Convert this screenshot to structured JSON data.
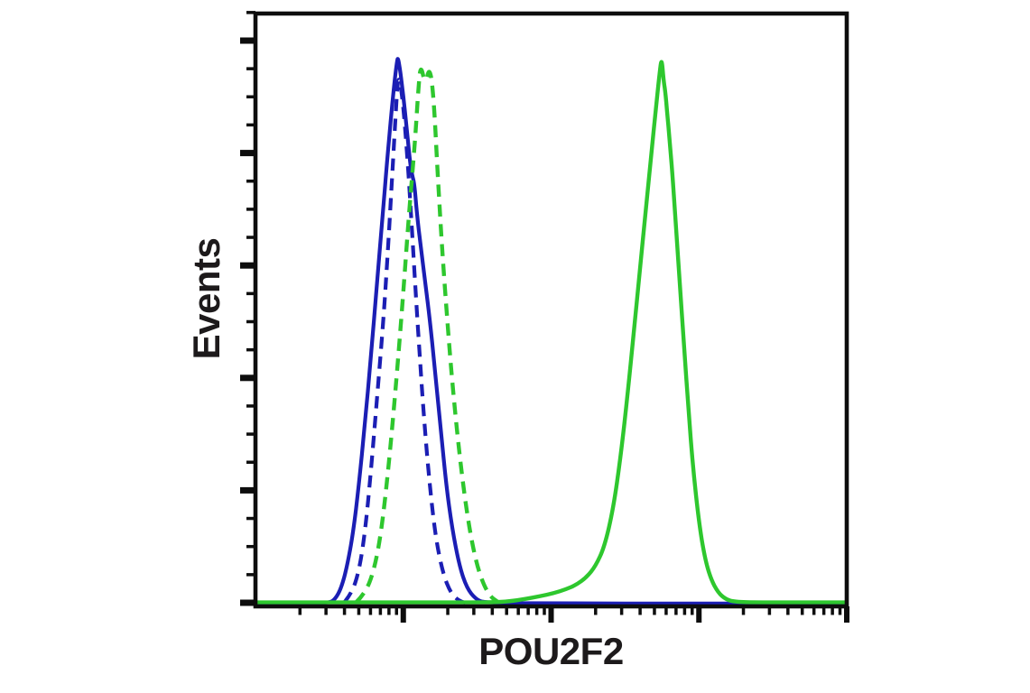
{
  "figure": {
    "background_color": "#ffffff",
    "axis_color": "#0d0d0d",
    "text_color": "#1d1a1b"
  },
  "chart_data": {
    "type": "line",
    "subtype": "flow-cytometry-histogram-overlay",
    "title": "",
    "xlabel": "POU2F2",
    "ylabel": "Events",
    "legend": "none",
    "x_axis": {
      "scale": "log10",
      "decades": 4,
      "numeric_tick_labels_shown": false,
      "minor_ticks_per_decade": "2-9 log positions",
      "major_tick_at_each_decade": true
    },
    "y_axis": {
      "scale": "linear",
      "range_relative": [
        0,
        1
      ],
      "numeric_tick_labels_shown": false,
      "major_ticks": 6,
      "minors_between_majors": 3
    },
    "series": [
      {
        "name": "blue-dashed-histogram",
        "color": "#1b1eb4",
        "line_style": "dashed",
        "line_width": 4.2,
        "peak_x_decade": 0.97,
        "peak_rel_height": 0.965,
        "points": [
          [
            0.6,
            0.004
          ],
          [
            0.65,
            0.02
          ],
          [
            0.7,
            0.06
          ],
          [
            0.74,
            0.13
          ],
          [
            0.78,
            0.24
          ],
          [
            0.82,
            0.37
          ],
          [
            0.86,
            0.5
          ],
          [
            0.89,
            0.62
          ],
          [
            0.92,
            0.76
          ],
          [
            0.945,
            0.88
          ],
          [
            0.96,
            0.95
          ],
          [
            0.972,
            0.965
          ],
          [
            0.99,
            0.935
          ],
          [
            1.01,
            0.88
          ],
          [
            1.035,
            0.79
          ],
          [
            1.06,
            0.68
          ],
          [
            1.085,
            0.565
          ],
          [
            1.11,
            0.46
          ],
          [
            1.14,
            0.34
          ],
          [
            1.18,
            0.215
          ],
          [
            1.22,
            0.12
          ],
          [
            1.27,
            0.055
          ],
          [
            1.32,
            0.022
          ],
          [
            1.37,
            0.008
          ],
          [
            1.42,
            0.003
          ]
        ]
      },
      {
        "name": "blue-solid-histogram",
        "color": "#1b1eb4",
        "line_style": "solid",
        "line_width": 4.2,
        "peak_x_decade": 0.965,
        "peak_rel_height": 1.0,
        "points": [
          [
            0.0,
            0.002
          ],
          [
            0.3,
            0.002
          ],
          [
            0.5,
            0.003
          ],
          [
            0.54,
            0.01
          ],
          [
            0.58,
            0.03
          ],
          [
            0.62,
            0.07
          ],
          [
            0.66,
            0.13
          ],
          [
            0.7,
            0.22
          ],
          [
            0.74,
            0.33
          ],
          [
            0.78,
            0.45
          ],
          [
            0.82,
            0.58
          ],
          [
            0.86,
            0.71
          ],
          [
            0.89,
            0.81
          ],
          [
            0.92,
            0.9
          ],
          [
            0.94,
            0.955
          ],
          [
            0.958,
            0.995
          ],
          [
            0.965,
            1.0
          ],
          [
            0.98,
            0.975
          ],
          [
            1.0,
            0.93
          ],
          [
            1.02,
            0.88
          ],
          [
            1.045,
            0.81
          ],
          [
            1.06,
            0.785
          ],
          [
            1.075,
            0.77
          ],
          [
            1.09,
            0.72
          ],
          [
            1.12,
            0.65
          ],
          [
            1.15,
            0.585
          ],
          [
            1.18,
            0.52
          ],
          [
            1.21,
            0.44
          ],
          [
            1.25,
            0.33
          ],
          [
            1.29,
            0.22
          ],
          [
            1.33,
            0.14
          ],
          [
            1.38,
            0.07
          ],
          [
            1.43,
            0.03
          ],
          [
            1.49,
            0.01
          ],
          [
            1.55,
            0.003
          ],
          [
            2.0,
            0.002
          ],
          [
            3.0,
            0.002
          ],
          [
            4.0,
            0.002
          ]
        ]
      },
      {
        "name": "green-dashed-histogram",
        "color": "#2ec72e",
        "line_style": "dashed",
        "line_width": 4.4,
        "peak_x_decade": 1.15,
        "peak_rel_height": 0.99,
        "notch_at_top": true,
        "points": [
          [
            0.68,
            0.004
          ],
          [
            0.74,
            0.02
          ],
          [
            0.8,
            0.06
          ],
          [
            0.85,
            0.13
          ],
          [
            0.9,
            0.25
          ],
          [
            0.95,
            0.4
          ],
          [
            1.0,
            0.57
          ],
          [
            1.04,
            0.72
          ],
          [
            1.08,
            0.85
          ],
          [
            1.1,
            0.935
          ],
          [
            1.117,
            0.99
          ],
          [
            1.148,
            0.95
          ],
          [
            1.179,
            0.985
          ],
          [
            1.205,
            0.93
          ],
          [
            1.23,
            0.8
          ],
          [
            1.26,
            0.66
          ],
          [
            1.3,
            0.51
          ],
          [
            1.34,
            0.38
          ],
          [
            1.39,
            0.25
          ],
          [
            1.44,
            0.15
          ],
          [
            1.49,
            0.08
          ],
          [
            1.54,
            0.038
          ],
          [
            1.59,
            0.014
          ],
          [
            1.64,
            0.005
          ]
        ]
      },
      {
        "name": "green-solid-histogram",
        "color": "#2ec72e",
        "line_style": "solid",
        "line_width": 4.4,
        "peak_x_decade": 2.748,
        "peak_rel_height": 1.0,
        "points": [
          [
            0.0,
            0.004
          ],
          [
            0.6,
            0.004
          ],
          [
            1.2,
            0.004
          ],
          [
            1.6,
            0.004
          ],
          [
            1.72,
            0.006
          ],
          [
            1.82,
            0.01
          ],
          [
            1.92,
            0.015
          ],
          [
            2.02,
            0.021
          ],
          [
            2.1,
            0.028
          ],
          [
            2.17,
            0.036
          ],
          [
            2.24,
            0.05
          ],
          [
            2.3,
            0.07
          ],
          [
            2.36,
            0.105
          ],
          [
            2.42,
            0.175
          ],
          [
            2.47,
            0.27
          ],
          [
            2.52,
            0.39
          ],
          [
            2.56,
            0.5
          ],
          [
            2.6,
            0.61
          ],
          [
            2.64,
            0.72
          ],
          [
            2.68,
            0.83
          ],
          [
            2.71,
            0.91
          ],
          [
            2.735,
            0.975
          ],
          [
            2.748,
            1.0
          ],
          [
            2.76,
            0.96
          ],
          [
            2.772,
            0.94
          ],
          [
            2.785,
            0.9
          ],
          [
            2.8,
            0.855
          ],
          [
            2.82,
            0.79
          ],
          [
            2.84,
            0.71
          ],
          [
            2.87,
            0.59
          ],
          [
            2.9,
            0.47
          ],
          [
            2.93,
            0.355
          ],
          [
            2.96,
            0.25
          ],
          [
            3.0,
            0.15
          ],
          [
            3.04,
            0.085
          ],
          [
            3.08,
            0.047
          ],
          [
            3.13,
            0.022
          ],
          [
            3.18,
            0.01
          ],
          [
            3.24,
            0.005
          ],
          [
            3.4,
            0.004
          ],
          [
            4.0,
            0.004
          ]
        ]
      }
    ]
  }
}
